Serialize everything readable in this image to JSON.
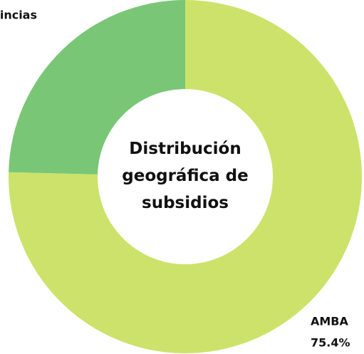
{
  "chart_data": {
    "type": "donut",
    "title": "Distribución geográfica de subsidios",
    "categories": [
      "AMBA",
      "Provincias"
    ],
    "values": [
      75.4,
      24.6
    ],
    "value_labels": [
      "75.4%",
      "24.6%"
    ],
    "colors": [
      "#cde26a",
      "#79c776"
    ]
  }
}
